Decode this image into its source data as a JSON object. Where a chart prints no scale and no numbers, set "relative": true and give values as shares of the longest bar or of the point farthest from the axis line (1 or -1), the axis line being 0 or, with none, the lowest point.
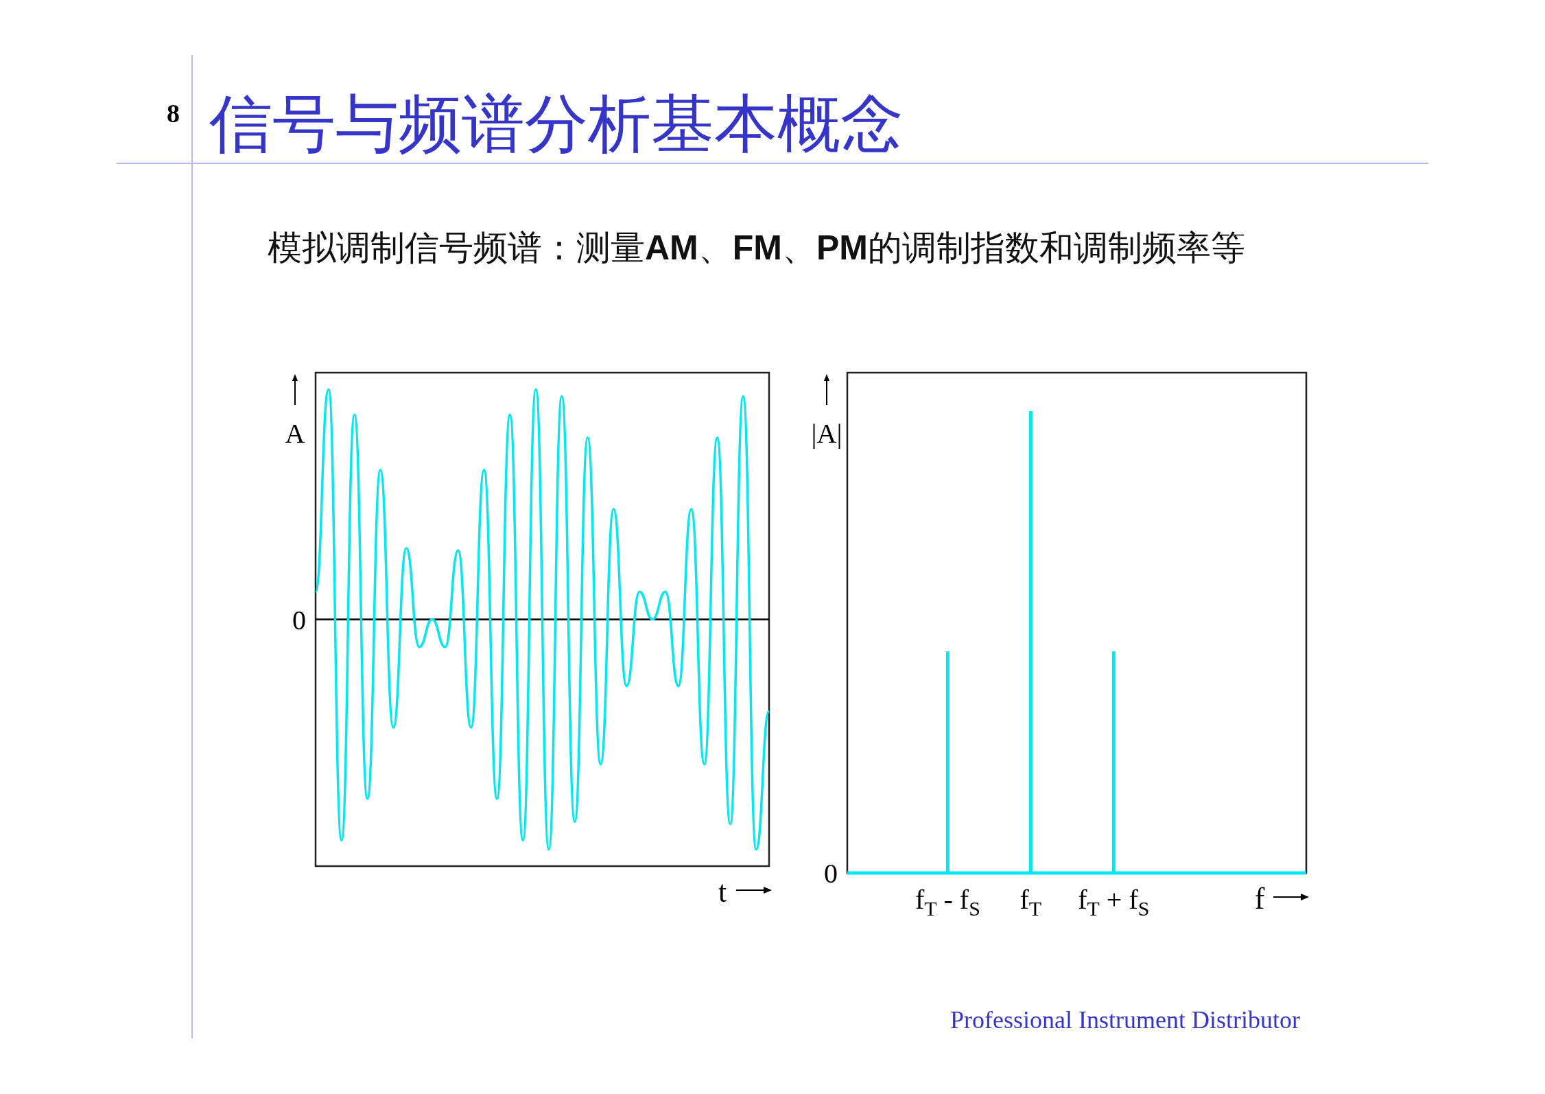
{
  "chart_data": [
    {
      "type": "line",
      "title": "信号与频谱分析基本概念",
      "subtitle": "模拟调制信号频谱：测量**AM**、**FM**、**PM**的调制指数和调制频率等",
      "xlabel": "t",
      "ylabel": "A",
      "relative": true,
      "categories": [
        null,
        null,
        null,
        null,
        null,
        null,
        null,
        null,
        null,
        null,
        null,
        null,
        null,
        null,
        null,
        null,
        null,
        null,
        null,
        null,
        null,
        null,
        null,
        null,
        null,
        null,
        null,
        null,
        null,
        null,
        null,
        null,
        null,
        null,
        null,
        null
      ],
      "series": [
        {
          "color": "#00e8f0",
          "values": [
            0.12,
            1.0,
            -0.96,
            0.89,
            -0.78,
            0.65,
            -0.47,
            0.31,
            -0.12,
            0.0,
            -0.12,
            0.3,
            -0.47,
            0.65,
            -0.78,
            0.89,
            -0.96,
            1.0,
            -1.0,
            0.97,
            -0.88,
            0.79,
            -0.63,
            0.48,
            -0.29,
            0.12,
            0.0,
            0.12,
            -0.29,
            0.48,
            -0.63,
            0.79,
            -0.89,
            0.97,
            -1.0,
            -0.4
          ]
        }
      ],
      "annotations": [
        "0",
        "8",
        "Professional Instrument Distributor"
      ]
    },
    {
      "type": "bar",
      "xlabel": "f",
      "ylabel": "|A|",
      "relative": true,
      "categories": [
        "f$_{T}$ - f$_{S}$",
        "f$_{T}$",
        "f$_{T}$ + f$_{S}$"
      ],
      "values": [
        0.48,
        1.0,
        0.48
      ],
      "color": "#00e8f0",
      "annotations": [
        "0"
      ]
    }
  ]
}
